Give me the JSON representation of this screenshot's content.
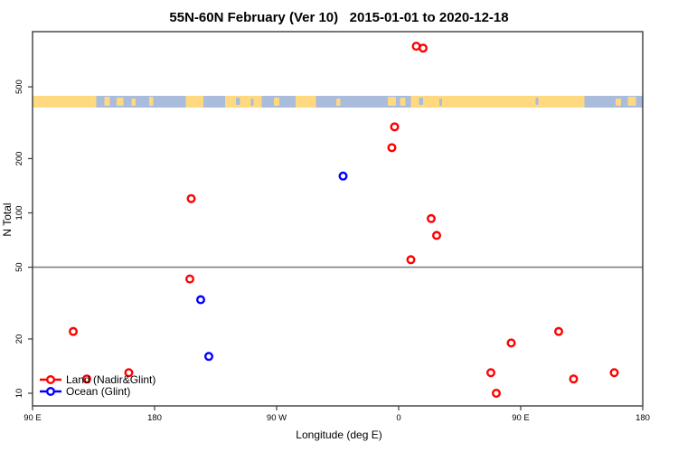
{
  "title": "55N-60N February (Ver 10)   2015-01-01 to 2020-12-18",
  "legend": {
    "land_label": "Land (Nadir&Glint)",
    "ocean_label": "Ocean (Glint)"
  },
  "chart_data": {
    "type": "scatter",
    "title": "55N-60N February (Ver 10)   2015-01-01 to 2020-12-18",
    "xlabel": "Longitude (deg E)",
    "ylabel": "N Total",
    "x_axis": {
      "range_deg": [
        90,
        540
      ],
      "ticks": [
        {
          "deg": 90,
          "label": "90 E"
        },
        {
          "deg": 180,
          "label": "180"
        },
        {
          "deg": 270,
          "label": "90 W"
        },
        {
          "deg": 360,
          "label": "0"
        },
        {
          "deg": 450,
          "label": "90 E"
        },
        {
          "deg": 540,
          "label": "180"
        }
      ]
    },
    "y_axis": {
      "scale": "log",
      "ticks": [
        10,
        20,
        50,
        100,
        200,
        500
      ],
      "range": [
        8.5,
        1000
      ]
    },
    "reference_line": {
      "n": 50,
      "color": "#808080"
    },
    "grid": false,
    "legend_position": "bottom-left",
    "series": [
      {
        "name": "Land (Nadir&Glint)",
        "color": "#ff0000",
        "points": [
          {
            "lon": 120,
            "n": 22
          },
          {
            "lon": 130,
            "n": 12
          },
          {
            "lon": 161,
            "n": 13
          },
          {
            "lon": 206,
            "n": 43
          },
          {
            "lon": 207,
            "n": 120
          },
          {
            "lon": 355,
            "n": 230
          },
          {
            "lon": 357,
            "n": 300
          },
          {
            "lon": 369,
            "n": 55
          },
          {
            "lon": 373,
            "n": 840
          },
          {
            "lon": 378,
            "n": 820
          },
          {
            "lon": 384,
            "n": 93
          },
          {
            "lon": 388,
            "n": 75
          },
          {
            "lon": 428,
            "n": 13
          },
          {
            "lon": 432,
            "n": 10
          },
          {
            "lon": 443,
            "n": 19
          },
          {
            "lon": 478,
            "n": 22
          },
          {
            "lon": 489,
            "n": 12
          },
          {
            "lon": 519,
            "n": 13
          }
        ]
      },
      {
        "name": "Ocean (Glint)",
        "color": "#0000ff",
        "points": [
          {
            "lon": 214,
            "n": 33
          },
          {
            "lon": 220,
            "n": 16
          },
          {
            "lon": 319,
            "n": 160
          }
        ]
      }
    ],
    "map_strip": {
      "land_color": "#ffd980",
      "ocean_color": "#a9bcdc",
      "base_segments": [
        {
          "from": 90,
          "to": 137,
          "type": "land"
        },
        {
          "from": 137,
          "to": 203,
          "type": "ocean"
        },
        {
          "from": 203,
          "to": 216,
          "type": "land"
        },
        {
          "from": 216,
          "to": 232,
          "type": "ocean"
        },
        {
          "from": 232,
          "to": 259,
          "type": "land"
        },
        {
          "from": 259,
          "to": 284,
          "type": "ocean"
        },
        {
          "from": 284,
          "to": 299,
          "type": "land"
        },
        {
          "from": 299,
          "to": 369,
          "type": "ocean"
        },
        {
          "from": 369,
          "to": 497,
          "type": "land"
        },
        {
          "from": 497,
          "to": 540,
          "type": "ocean"
        }
      ],
      "land_islands": [
        {
          "from": 143,
          "to": 147
        },
        {
          "from": 152,
          "to": 157
        },
        {
          "from": 163,
          "to": 166
        },
        {
          "from": 176,
          "to": 179
        },
        {
          "from": 268,
          "to": 272
        },
        {
          "from": 314,
          "to": 317
        },
        {
          "from": 352,
          "to": 358
        },
        {
          "from": 361,
          "to": 365
        },
        {
          "from": 520,
          "to": 524
        },
        {
          "from": 529,
          "to": 535
        }
      ],
      "ocean_islands": [
        {
          "from": 240,
          "to": 243
        },
        {
          "from": 251,
          "to": 253
        },
        {
          "from": 375,
          "to": 378
        },
        {
          "from": 390,
          "to": 392
        },
        {
          "from": 461,
          "to": 463
        }
      ]
    }
  }
}
